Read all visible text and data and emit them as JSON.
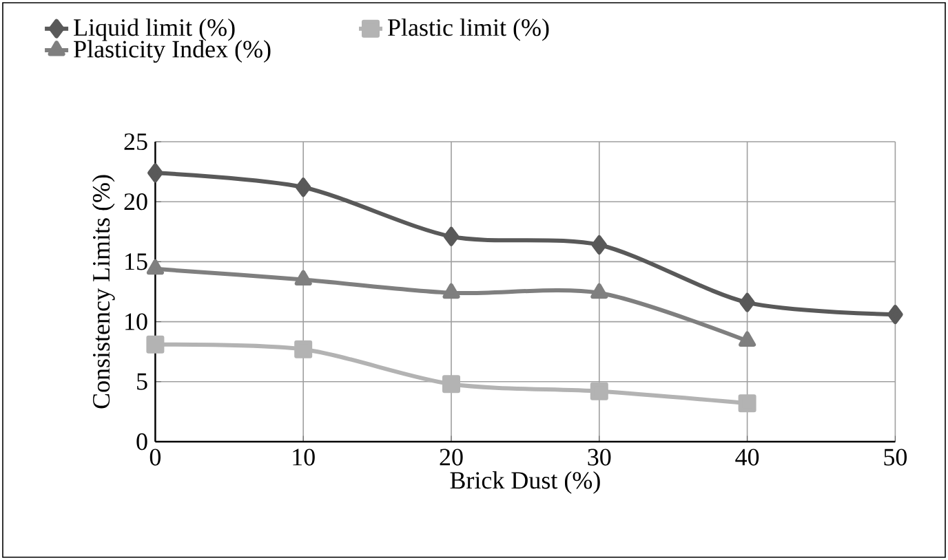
{
  "chart_data": {
    "type": "line",
    "xlabel": "Brick Dust (%)",
    "ylabel": "Consistency Limits (%)",
    "x": [
      0,
      10,
      20,
      30,
      40,
      50
    ],
    "series": [
      {
        "name": "Liquid limit (%)",
        "color": "#595959",
        "marker": "diamond",
        "values": [
          22.4,
          21.2,
          17.1,
          16.4,
          11.6,
          10.6
        ]
      },
      {
        "name": "Plastic limit (%)",
        "color": "#b3b3b3",
        "marker": "square",
        "values": [
          8.1,
          7.7,
          4.8,
          4.2,
          3.2,
          null
        ]
      },
      {
        "name": "Plasticity Index (%)",
        "color": "#7f7f7f",
        "marker": "triangle",
        "values": [
          14.4,
          13.5,
          12.4,
          12.4,
          8.4,
          null
        ]
      }
    ],
    "xlim": [
      0,
      50
    ],
    "xticks": [
      0,
      10,
      20,
      30,
      40,
      50
    ],
    "ylim": [
      0,
      25
    ],
    "yticks": [
      0,
      5,
      10,
      15,
      20,
      25
    ],
    "grid": true,
    "legend": "top",
    "line_style": "solid"
  }
}
